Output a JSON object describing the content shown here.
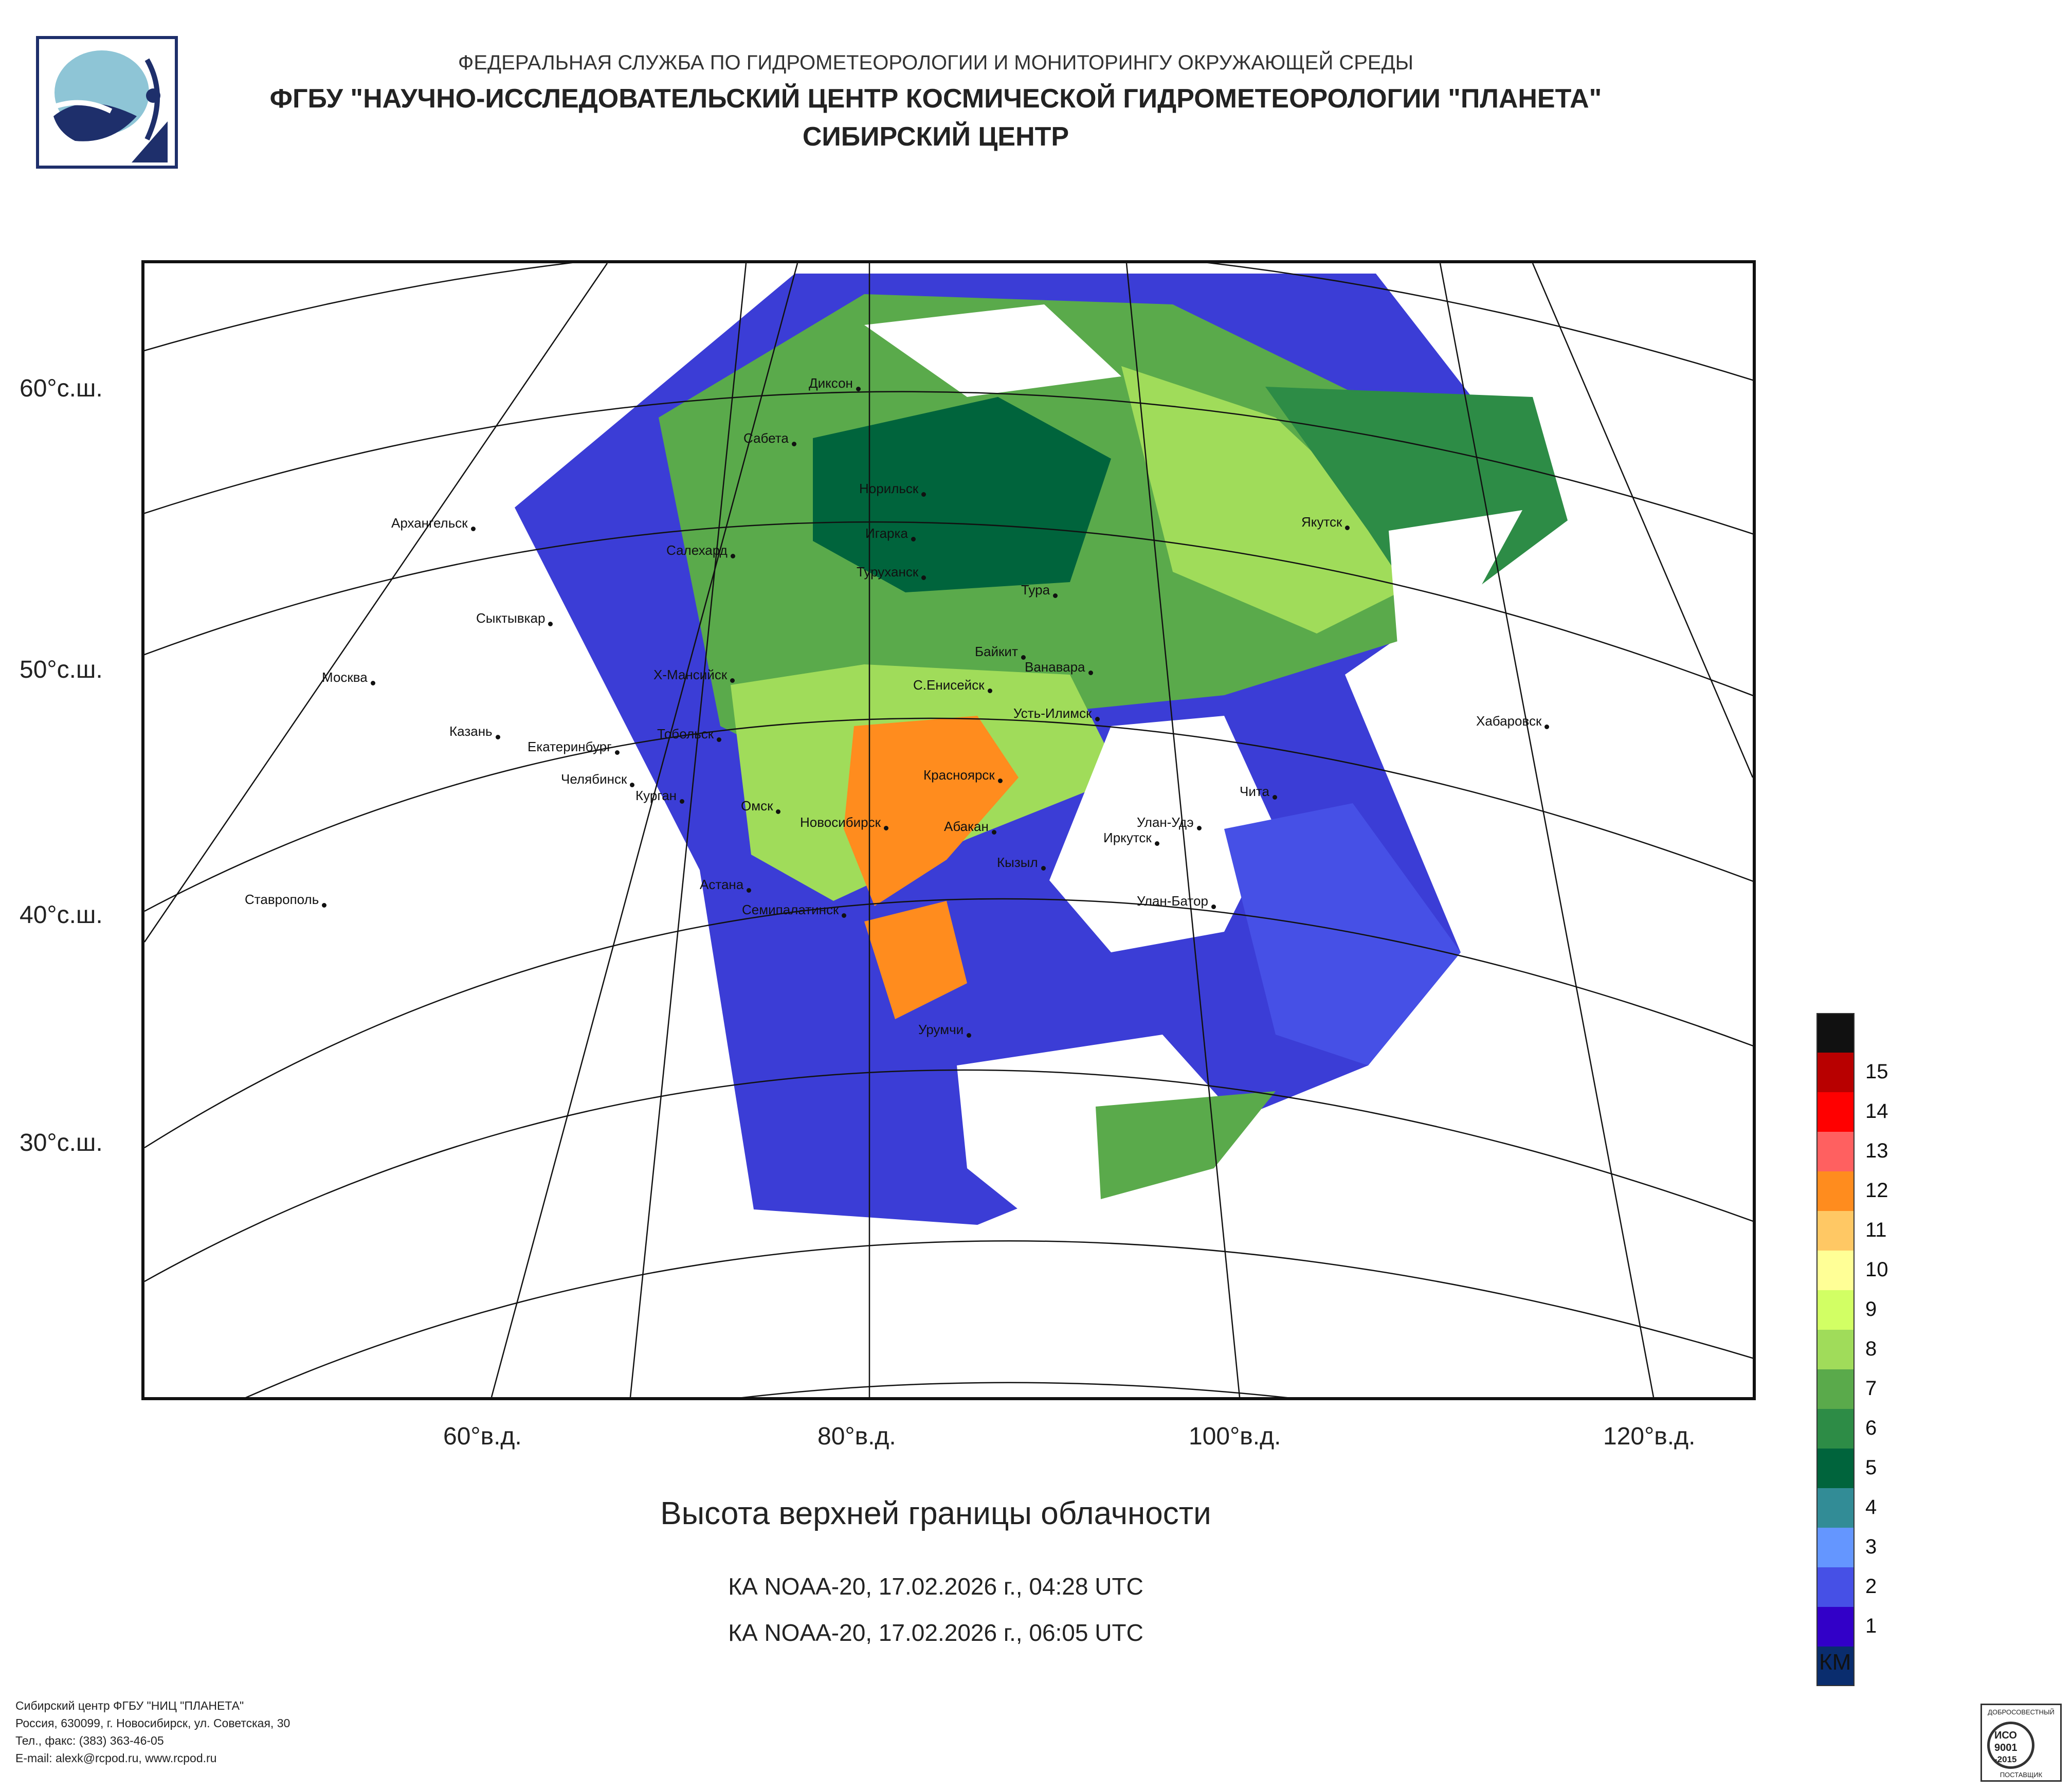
{
  "header": {
    "line1": "ФЕДЕРАЛЬНАЯ СЛУЖБА ПО ГИДРОМЕТЕОРОЛОГИИ И МОНИТОРИНГУ ОКРУЖАЮЩЕЙ СРЕДЫ",
    "line2": "ФГБУ \"НАУЧНО-ИССЛЕДОВАТЕЛЬСКИЙ ЦЕНТР КОСМИЧЕСКОЙ ГИДРОМЕТЕОРОЛОГИИ \"ПЛАНЕТА\"",
    "line3": "СИБИРСКИЙ ЦЕНТР"
  },
  "map": {
    "lat_labels": [
      "60°с.ш.",
      "50°с.ш.",
      "40°с.ш.",
      "30°с.ш."
    ],
    "lon_labels": [
      "60°в.д.",
      "80°в.д.",
      "100°в.д.",
      "120°в.д."
    ],
    "cities": [
      "Диксон",
      "Сабета",
      "Норильск",
      "Игарка",
      "Салехард",
      "Туруханск",
      "Архангельск",
      "Тура",
      "Якутск",
      "Сыктывкар",
      "Байкит",
      "Ванавара",
      "Х-Мансийск",
      "С.Енисейск",
      "Москва",
      "Усть-Илимск",
      "Казань",
      "Тобольск",
      "Екатеринбург",
      "Хабаровск",
      "Челябинск",
      "Курган",
      "Красноярск",
      "Омск",
      "Чита",
      "Новосибирск",
      "Абакан",
      "Улан-Удэ",
      "Иркутск",
      "Кызыл",
      "Астана",
      "Ставрополь",
      "Семипалатинск",
      "Улан-Батор",
      "Урумчи"
    ]
  },
  "title": "Высота верхней границы облачности",
  "passes": [
    "КА NOAA-20, 17.02.2026 г., 04:28 UTC",
    "КА NOAA-20, 17.02.2026 г., 06:05 UTC"
  ],
  "legend": {
    "unit": "КМ",
    "levels": [
      {
        "label": "",
        "color": "#111111"
      },
      {
        "label": "15",
        "color": "#b80000"
      },
      {
        "label": "14",
        "color": "#ff0000"
      },
      {
        "label": "13",
        "color": "#ff6060"
      },
      {
        "label": "12",
        "color": "#ff8c1e"
      },
      {
        "label": "11",
        "color": "#ffc864"
      },
      {
        "label": "10",
        "color": "#ffff96"
      },
      {
        "label": "9",
        "color": "#d2ff64"
      },
      {
        "label": "8",
        "color": "#a0dc5a"
      },
      {
        "label": "7",
        "color": "#5aaa4b"
      },
      {
        "label": "6",
        "color": "#2d8c46"
      },
      {
        "label": "5",
        "color": "#00643c"
      },
      {
        "label": "4",
        "color": "#328c96"
      },
      {
        "label": "3",
        "color": "#6496ff"
      },
      {
        "label": "2",
        "color": "#4650e6"
      },
      {
        "label": "1",
        "color": "#3200c8"
      },
      {
        "label": "",
        "color": "#0a2d6e"
      }
    ]
  },
  "footer": {
    "line1": "Сибирский центр ФГБУ \"НИЦ \"ПЛАНЕТА\"",
    "line2": "Россия, 630099, г. Новосибирск, ул. Советская, 30",
    "line3": "Тел., факс: (383) 363-46-05",
    "line4": "E-mail: alexk@rcpod.ru, www.rcpod.ru"
  },
  "iso_badge": {
    "top": "ДОБРОСОВЕСТНЫЙ",
    "std1": "ИСО",
    "std2": "9001",
    "std3": "-2015",
    "bottom": "ПОСТАВЩИК"
  }
}
